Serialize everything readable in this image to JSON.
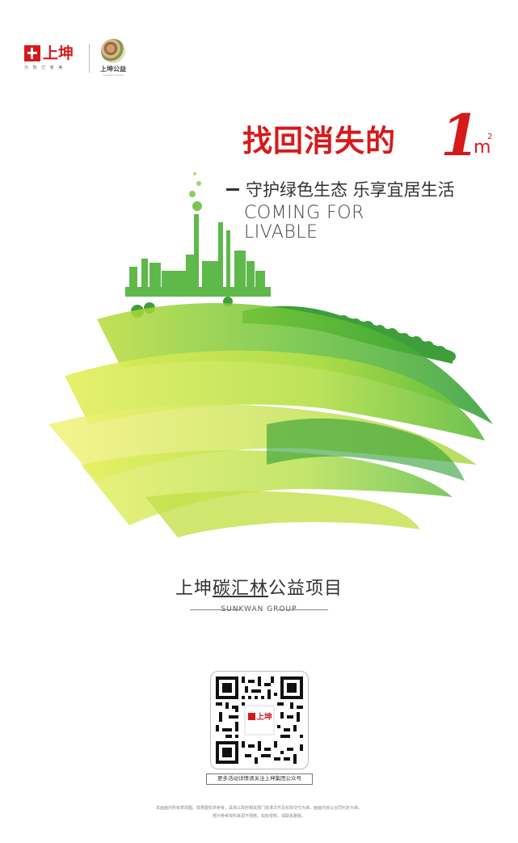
{
  "header": {
    "brand_name": "上坤",
    "brand_slogan": "为 知 己 者 美",
    "charity_name": "上坤公益",
    "charity_sub": "Sunkwan Charity"
  },
  "headline": {
    "text": "找回消失的",
    "number": "1",
    "unit": "m",
    "unit_sup": "2"
  },
  "subhead": "守护绿色生态 乐享宜居生活",
  "english_tagline": [
    "COMING FOR",
    "LIVABLE"
  ],
  "project": {
    "title_before": "上坤",
    "title_highlight": "碳汇林",
    "title_after": "公益项目",
    "subtitle": "SUNKWAN GROUP"
  },
  "qr": {
    "center_label": "上坤",
    "caption": "更多活动详情请关注上坤集团公众号"
  },
  "disclaimer": [
    "本画面内所有表现图、效果图仅供参考，具体以政府相关部门批准文件及实际交付为准，画面内容以合同约定为准。",
    "部分参考资料来源于网络，如有侵权，请联系删除。"
  ],
  "colors": {
    "brand_red": "#d7191b",
    "green_dark": "#3d9a2c",
    "green_light": "#8fd145",
    "yellow": "#e8ef5a"
  }
}
